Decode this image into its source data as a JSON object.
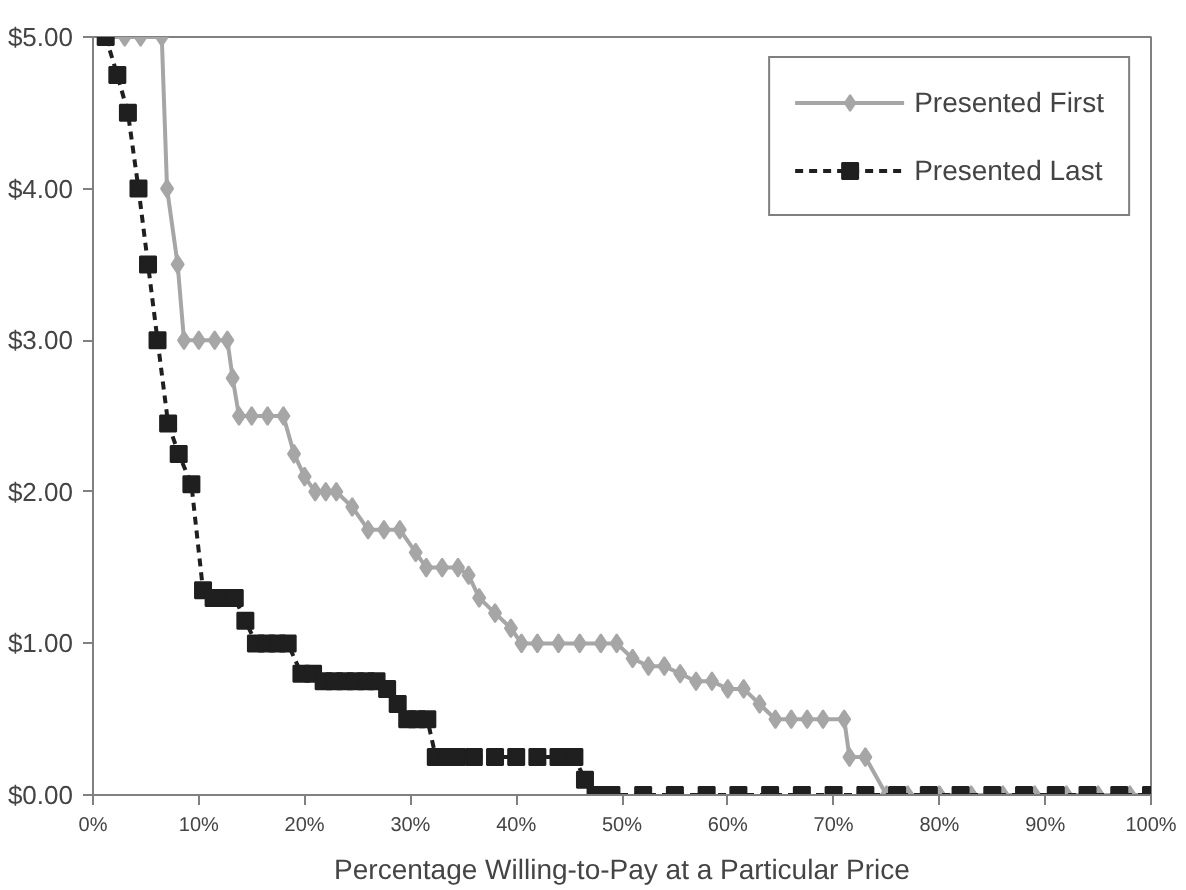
{
  "chart_data": {
    "type": "line",
    "xlabel": "Percentage Willing-to-Pay at a Particular Price",
    "xlim": [
      0,
      100
    ],
    "ylim": [
      0,
      5
    ],
    "xticks": [
      {
        "value": 0,
        "label": "0%"
      },
      {
        "value": 10,
        "label": "10%"
      },
      {
        "value": 20,
        "label": "20%"
      },
      {
        "value": 30,
        "label": "30%"
      },
      {
        "value": 40,
        "label": "40%"
      },
      {
        "value": 50,
        "label": "50%"
      },
      {
        "value": 60,
        "label": "60%"
      },
      {
        "value": 70,
        "label": "70%"
      },
      {
        "value": 80,
        "label": "80%"
      },
      {
        "value": 90,
        "label": "90%"
      },
      {
        "value": 100,
        "label": "100%"
      }
    ],
    "yticks": [
      {
        "value": 0,
        "label": "$0.00"
      },
      {
        "value": 1,
        "label": "$1.00"
      },
      {
        "value": 2,
        "label": "$2.00"
      },
      {
        "value": 3,
        "label": "$3.00"
      },
      {
        "value": 4,
        "label": "$4.00"
      },
      {
        "value": 5,
        "label": "$5.00"
      }
    ],
    "grid": false,
    "legend": "top right",
    "series": [
      {
        "name": "Presented First",
        "color": "#a6a6a6",
        "marker": "diamond",
        "line_style": "solid",
        "x": [
          1.5,
          3,
          4.5,
          6.5,
          7,
          8,
          8.6,
          10,
          11.5,
          12.7,
          13.2,
          13.8,
          15,
          16.5,
          18,
          19,
          20,
          21,
          22,
          23,
          24.5,
          26,
          27.5,
          29,
          30.5,
          31.5,
          33,
          34.5,
          35.5,
          36.5,
          38,
          39.5,
          40.5,
          42,
          44,
          46,
          48,
          49.5,
          51,
          52.5,
          54,
          55.5,
          57,
          58.5,
          60,
          61.5,
          63,
          64.5,
          66,
          67.5,
          69,
          71,
          71.5,
          73,
          75,
          77,
          80,
          83,
          86,
          89,
          92,
          95,
          98,
          100
        ],
        "values": [
          5,
          5,
          5,
          5,
          4,
          3.5,
          3,
          3,
          3,
          3,
          2.75,
          2.5,
          2.5,
          2.5,
          2.5,
          2.25,
          2.1,
          2,
          2,
          2,
          1.9,
          1.75,
          1.75,
          1.75,
          1.6,
          1.5,
          1.5,
          1.5,
          1.45,
          1.3,
          1.2,
          1.1,
          1,
          1,
          1,
          1,
          1,
          1,
          0.9,
          0.85,
          0.85,
          0.8,
          0.75,
          0.75,
          0.7,
          0.7,
          0.6,
          0.5,
          0.5,
          0.5,
          0.5,
          0.5,
          0.25,
          0.25,
          0,
          0,
          0,
          0,
          0,
          0,
          0,
          0,
          0,
          0
        ]
      },
      {
        "name": "Presented Last",
        "color": "#1f1f1f",
        "marker": "square",
        "line_style": "dashed",
        "x": [
          1.2,
          2.3,
          3.3,
          4.3,
          5.2,
          6.1,
          7.1,
          8.1,
          9.3,
          10.4,
          11.4,
          12.4,
          13.4,
          14.4,
          15.4,
          16.4,
          17.4,
          18.4,
          19.7,
          20.8,
          21.8,
          22.8,
          23.8,
          24.8,
          25.8,
          26.8,
          27.8,
          28.8,
          29.7,
          30.6,
          31.6,
          32.4,
          33.4,
          34.4,
          36,
          38,
          40,
          42,
          44,
          45.5,
          46.5,
          47.5,
          49,
          52,
          55,
          58,
          61,
          64,
          67,
          70,
          73,
          76,
          79,
          82,
          85,
          88,
          91,
          94,
          97,
          100
        ],
        "values": [
          5,
          4.75,
          4.5,
          4,
          3.5,
          3,
          2.45,
          2.25,
          2.05,
          1.35,
          1.3,
          1.3,
          1.3,
          1.15,
          1,
          1,
          1,
          1,
          0.8,
          0.8,
          0.75,
          0.75,
          0.75,
          0.75,
          0.75,
          0.75,
          0.7,
          0.6,
          0.5,
          0.5,
          0.5,
          0.25,
          0.25,
          0.25,
          0.25,
          0.25,
          0.25,
          0.25,
          0.25,
          0.25,
          0.1,
          0,
          0,
          0,
          0,
          0,
          0,
          0,
          0,
          0,
          0,
          0,
          0,
          0,
          0,
          0,
          0,
          0,
          0,
          0
        ]
      }
    ]
  }
}
